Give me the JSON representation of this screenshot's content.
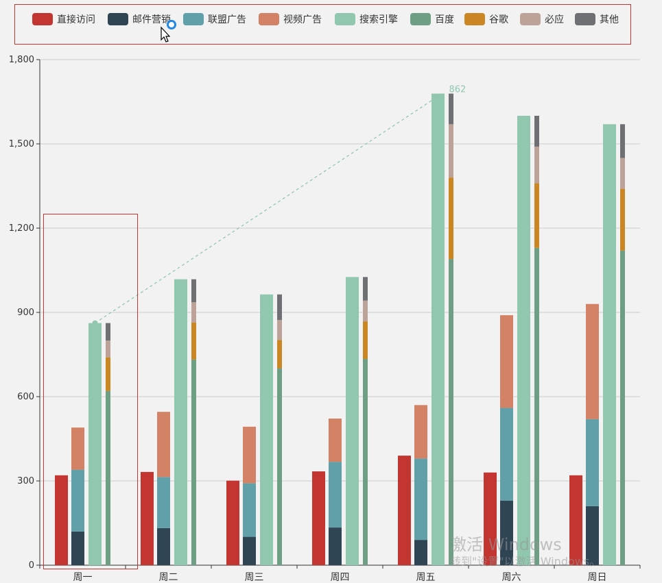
{
  "legend": {
    "items": [
      {
        "label": "直接访问",
        "color": "#c23531"
      },
      {
        "label": "邮件营销",
        "color": "#2f4554"
      },
      {
        "label": "联盟广告",
        "color": "#61a0a8"
      },
      {
        "label": "视频广告",
        "color": "#d48265"
      },
      {
        "label": "搜索引擎",
        "color": "#91c7ae"
      },
      {
        "label": "百度",
        "color": "#6e9e84"
      },
      {
        "label": "谷歌",
        "color": "#ca8622"
      },
      {
        "label": "必应",
        "color": "#bda29a"
      },
      {
        "label": "其他",
        "color": "#6e7074"
      }
    ]
  },
  "watermark": {
    "line1": "激活 Windows",
    "line2": "转到\"设置\"以激活 Windows。"
  },
  "chart_data": {
    "type": "bar",
    "categories": [
      "周一",
      "周二",
      "周三",
      "周四",
      "周五",
      "周六",
      "周日"
    ],
    "ylim": [
      0,
      1800
    ],
    "yticks": [
      0,
      300,
      600,
      900,
      1200,
      1500,
      1800
    ],
    "ytick_labels": [
      "0",
      "300",
      "600",
      "900",
      "1,200",
      "1,500",
      "1,800"
    ],
    "grid": true,
    "stacks": [
      {
        "name": "直接访问",
        "color": "#c23531",
        "series": [
          {
            "name": "直接访问",
            "values": [
              320,
              332,
              301,
              334,
              390,
              330,
              320
            ]
          }
        ]
      },
      {
        "name": "广告",
        "series": [
          {
            "name": "邮件营销",
            "color": "#2f4554",
            "values": [
              120,
              132,
              101,
              134,
              90,
              230,
              210
            ]
          },
          {
            "name": "联盟广告",
            "color": "#61a0a8",
            "values": [
              220,
              182,
              191,
              234,
              290,
              330,
              310
            ]
          },
          {
            "name": "视频广告",
            "color": "#d48265",
            "values": [
              150,
              232,
              201,
              154,
              190,
              330,
              410
            ]
          }
        ]
      },
      {
        "name": "搜索引擎",
        "series": [
          {
            "name": "搜索引擎",
            "color": "#91c7ae",
            "values": [
              862,
              1018,
              964,
              1026,
              1679,
              1600,
              1570
            ]
          }
        ]
      },
      {
        "name": "搜索引擎细分",
        "series": [
          {
            "name": "百度",
            "color": "#6e9e84",
            "values": [
              620,
              732,
              701,
              734,
              1090,
              1130,
              1120
            ]
          },
          {
            "name": "谷歌",
            "color": "#ca8622",
            "values": [
              120,
              132,
              101,
              134,
              290,
              230,
              220
            ]
          },
          {
            "name": "必应",
            "color": "#bda29a",
            "values": [
              60,
              72,
              71,
              74,
              190,
              130,
              110
            ]
          },
          {
            "name": "其他",
            "color": "#6e7074",
            "values": [
              62,
              82,
              91,
              84,
              109,
              110,
              120
            ]
          }
        ]
      }
    ],
    "markline": {
      "from_category": "周一",
      "to_category": "周五",
      "label": "862",
      "color": "#91c7ae"
    }
  }
}
